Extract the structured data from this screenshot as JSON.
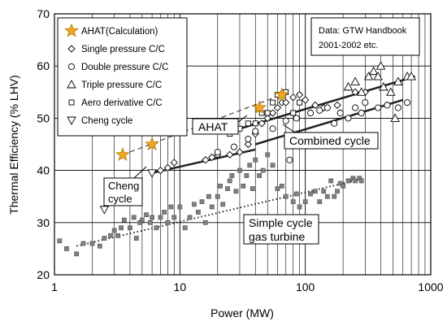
{
  "chart_data": {
    "type": "scatter",
    "xlabel": "Power (MW)",
    "ylabel": "Thermal  Efficiency (% LHV)",
    "x_scale": "log",
    "xlim": [
      1,
      1000
    ],
    "ylim": [
      20,
      70
    ],
    "x_ticks": [
      "1",
      "10",
      "100",
      "1000"
    ],
    "y_ticks": [
      "20",
      "30",
      "40",
      "50",
      "60",
      "70"
    ],
    "grid": true,
    "legend_position": "top-left",
    "legend": [
      {
        "label": "AHAT(Calculation)",
        "marker": "star"
      },
      {
        "label": "Single pressure C/C",
        "marker": "diamond"
      },
      {
        "label": "Double pressure C/C",
        "marker": "circle"
      },
      {
        "label": "Triple pressure C/C",
        "marker": "triangle-up"
      },
      {
        "label": "Aero derivative C/C",
        "marker": "square"
      },
      {
        "label": "Cheng cycle",
        "marker": "triangle-down"
      }
    ],
    "source_note": [
      "Data: GTW Handbook",
      "2001-2002 etc."
    ],
    "annotations": [
      "AHAT",
      "Combined cycle",
      "Cheng",
      "cycle",
      "Simple cycle",
      "gas turbine"
    ],
    "colors": {
      "star": "#f5a623",
      "star_outline": "#b8860b",
      "simple_cycle_marker": "#808080"
    },
    "series": [
      {
        "name": "AHAT(Calculation)",
        "marker": "star",
        "points": [
          [
            3.5,
            43
          ],
          [
            6,
            45
          ],
          [
            43,
            52
          ],
          [
            65,
            54.5
          ]
        ]
      },
      {
        "name": "Single pressure C/C",
        "marker": "diamond",
        "points": [
          [
            7,
            40
          ],
          [
            8,
            40.5
          ],
          [
            9,
            41.5
          ],
          [
            16,
            42
          ],
          [
            18,
            42.5
          ],
          [
            20,
            43
          ],
          [
            25,
            43
          ],
          [
            30,
            43.5
          ],
          [
            35,
            45
          ],
          [
            40,
            47
          ],
          [
            45,
            49
          ],
          [
            50,
            50
          ],
          [
            55,
            51
          ],
          [
            60,
            52
          ],
          [
            65,
            53
          ],
          [
            70,
            53
          ],
          [
            80,
            54
          ],
          [
            90,
            54.5
          ],
          [
            100,
            53.5
          ],
          [
            120,
            52.5
          ],
          [
            140,
            52
          ],
          [
            180,
            52.5
          ],
          [
            250,
            55
          ],
          [
            300,
            55
          ]
        ]
      },
      {
        "name": "Double pressure C/C",
        "marker": "circle",
        "points": [
          [
            20,
            43.5
          ],
          [
            27,
            44.5
          ],
          [
            35,
            46
          ],
          [
            40,
            47.5
          ],
          [
            55,
            48
          ],
          [
            70,
            49.5
          ],
          [
            75,
            42
          ],
          [
            85,
            50
          ],
          [
            110,
            51
          ],
          [
            130,
            51.5
          ],
          [
            150,
            52
          ],
          [
            170,
            49
          ],
          [
            190,
            51
          ],
          [
            220,
            50
          ],
          [
            250,
            52
          ],
          [
            280,
            51
          ],
          [
            300,
            53
          ],
          [
            380,
            52
          ],
          [
            450,
            52.5
          ],
          [
            550,
            52
          ],
          [
            650,
            53
          ]
        ]
      },
      {
        "name": "Triple pressure C/C",
        "marker": "triangle-up",
        "points": [
          [
            220,
            56
          ],
          [
            250,
            57
          ],
          [
            280,
            55
          ],
          [
            320,
            58
          ],
          [
            350,
            59
          ],
          [
            380,
            58
          ],
          [
            400,
            60
          ],
          [
            420,
            56
          ],
          [
            480,
            55
          ],
          [
            520,
            50
          ],
          [
            550,
            57
          ],
          [
            650,
            58
          ],
          [
            700,
            58
          ]
        ]
      },
      {
        "name": "Aero derivative C/C",
        "marker": "square",
        "points": [
          [
            25,
            47
          ],
          [
            30,
            48
          ],
          [
            35,
            49
          ],
          [
            40,
            49
          ],
          [
            45,
            51
          ],
          [
            50,
            51
          ],
          [
            55,
            53
          ],
          [
            60,
            54.5
          ],
          [
            70,
            55
          ],
          [
            80,
            51
          ],
          [
            90,
            53
          ]
        ]
      },
      {
        "name": "Cheng cycle",
        "marker": "triangle-down",
        "points": [
          [
            2.5,
            32.5
          ],
          [
            6,
            39.5
          ]
        ]
      },
      {
        "name": "",
        "marker": "gray-square",
        "points": [
          [
            1.1,
            26.5
          ],
          [
            1.25,
            25
          ],
          [
            1.5,
            24
          ],
          [
            1.7,
            26
          ],
          [
            2,
            26
          ],
          [
            2.3,
            25.5
          ],
          [
            2.5,
            27
          ],
          [
            2.8,
            27.5
          ],
          [
            3,
            28.5
          ],
          [
            3.2,
            27.5
          ],
          [
            3.4,
            29
          ],
          [
            3.6,
            30.5
          ],
          [
            4,
            29
          ],
          [
            4.3,
            31
          ],
          [
            4.5,
            27
          ],
          [
            4.8,
            30
          ],
          [
            5,
            30.5
          ],
          [
            5.4,
            31.5
          ],
          [
            5.8,
            30
          ],
          [
            6,
            31
          ],
          [
            6.5,
            29
          ],
          [
            7,
            31
          ],
          [
            7.5,
            32
          ],
          [
            8,
            30
          ],
          [
            8.5,
            33
          ],
          [
            9,
            31
          ],
          [
            10,
            33
          ],
          [
            11,
            29
          ],
          [
            12,
            31
          ],
          [
            13,
            33.5
          ],
          [
            14,
            32
          ],
          [
            15,
            34
          ],
          [
            16,
            30
          ],
          [
            17,
            35
          ],
          [
            18,
            33
          ],
          [
            20,
            35
          ],
          [
            21,
            37
          ],
          [
            22,
            33.5
          ],
          [
            24,
            36.5
          ],
          [
            25,
            38
          ],
          [
            26,
            39
          ],
          [
            28,
            36
          ],
          [
            30,
            40
          ],
          [
            32,
            37
          ],
          [
            34,
            39
          ],
          [
            36,
            41
          ],
          [
            38,
            36.5
          ],
          [
            40,
            42
          ],
          [
            43,
            39
          ],
          [
            46,
            40
          ],
          [
            50,
            43
          ],
          [
            55,
            41
          ],
          [
            60,
            36.5
          ],
          [
            65,
            37
          ],
          [
            70,
            35
          ],
          [
            80,
            34
          ],
          [
            85,
            35.5
          ],
          [
            90,
            33
          ],
          [
            100,
            34
          ],
          [
            110,
            35.5
          ],
          [
            120,
            36
          ],
          [
            130,
            34
          ],
          [
            140,
            36
          ],
          [
            150,
            35
          ],
          [
            160,
            38
          ],
          [
            170,
            35
          ],
          [
            180,
            36
          ],
          [
            190,
            37.5
          ],
          [
            200,
            37
          ],
          [
            220,
            38
          ],
          [
            240,
            38.5
          ],
          [
            250,
            38
          ],
          [
            270,
            38.5
          ],
          [
            280,
            38
          ]
        ]
      }
    ],
    "trend_lines": [
      {
        "label": "AHAT",
        "style": "dashed",
        "from": [
          3.5,
          43
        ],
        "to": [
          65,
          54.5
        ]
      },
      {
        "label": "Combined cycle (upper)",
        "style": "solid",
        "from": [
          30,
          48
        ],
        "to": [
          750,
          58
        ]
      },
      {
        "label": "Combined cycle (lower)",
        "style": "solid",
        "from": [
          40,
          45
        ],
        "to": [
          600,
          53.5
        ]
      },
      {
        "label": "Cheng cycle",
        "style": "solid",
        "from": [
          6,
          39.5
        ],
        "to": [
          40,
          44
        ]
      },
      {
        "label": "Simple cycle gas turbine",
        "style": "dotted",
        "from": [
          1.5,
          25.5
        ],
        "to": [
          300,
          38.5
        ]
      }
    ]
  }
}
